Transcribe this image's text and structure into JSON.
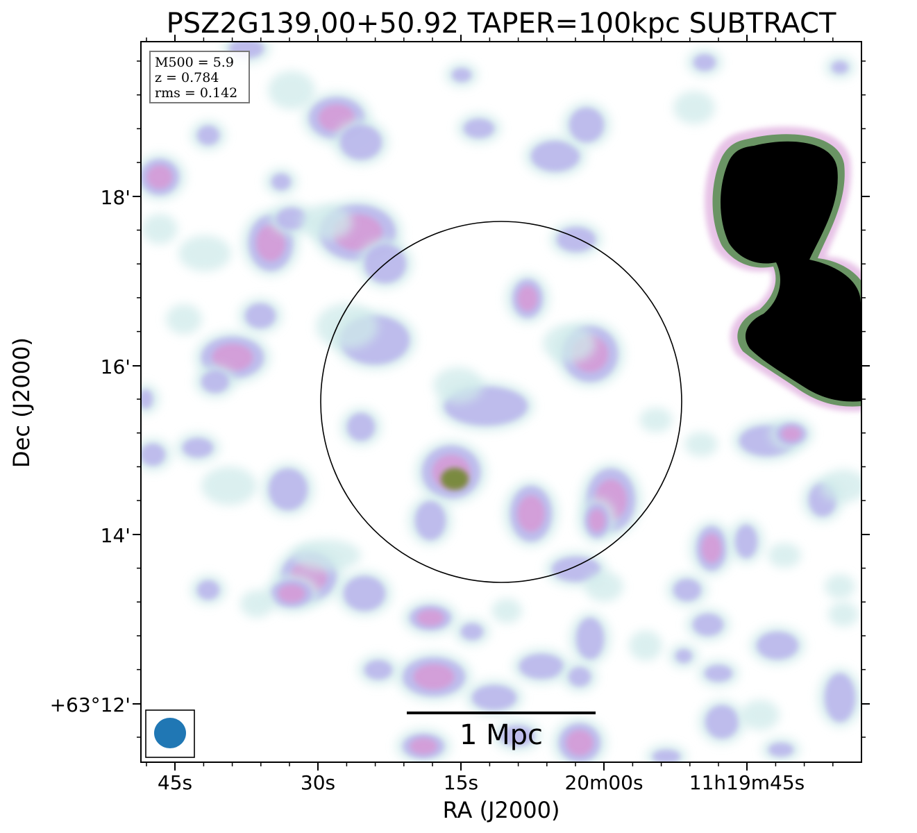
{
  "chart_data": {
    "type": "heatmap",
    "title": "PSZ2G139.00+50.92 TAPER=100kpc SUBTRACT",
    "xlabel": "RA (J2000)",
    "ylabel": "Dec (J2000)",
    "x_ticks": [
      "45s",
      "30s",
      "15s",
      "20m00s",
      "11h19m45s"
    ],
    "y_ticks": [
      "18'",
      "16'",
      "14'",
      "+63°12'"
    ],
    "info_box": {
      "m500": "M500 = 5.9",
      "z": "z = 0.784",
      "rms": "rms = 0.142"
    },
    "scale_bar_label": "1 Mpc",
    "colormap": "cubehelix-like (white to blue/pink, bright sources black)",
    "colors": {
      "pale_cyan": "#cfeaea",
      "lavender": "#b9b4ec",
      "pink": "#d79ad6",
      "olive_peak": "#7a8a40",
      "bright_source": "#000000",
      "beam": "#2077b4"
    }
  }
}
